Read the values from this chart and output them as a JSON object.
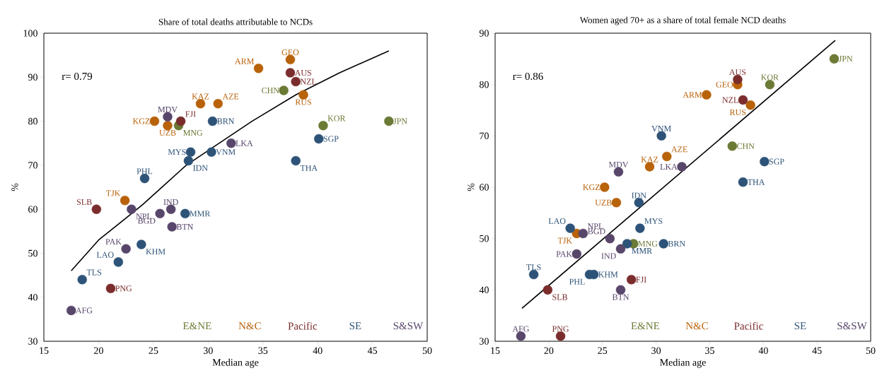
{
  "chart_data": [
    {
      "type": "scatter",
      "title": "Share of total deaths attributable to NCDs",
      "xlabel": "Median age",
      "ylabel": "%",
      "xlim": [
        15,
        50
      ],
      "xticks": [
        15,
        20,
        25,
        30,
        35,
        40,
        45,
        50
      ],
      "ylim": [
        30,
        100
      ],
      "yticks": [
        30,
        40,
        50,
        60,
        70,
        80,
        90,
        100
      ],
      "legend": "bottom right",
      "series": [
        {
          "name": "E&NE",
          "color": "#6b7a35",
          "marker": "circle",
          "x": [
            36.9,
            27.3,
            40.5,
            46.5
          ],
          "values": [
            87,
            79,
            79,
            80
          ]
        },
        {
          "name": "N&C",
          "color": "#b8620a",
          "marker": "circle",
          "x": [
            29.3,
            30.9,
            25.1,
            26.3,
            34.6,
            37.5,
            38.7,
            22.4
          ],
          "values": [
            84,
            84,
            80,
            79,
            92,
            94,
            86,
            62
          ]
        },
        {
          "name": "Pacific",
          "color": "#7b2d2d",
          "marker": "circle",
          "x": [
            27.5,
            37.5,
            38.0,
            19.8,
            21.1
          ],
          "values": [
            80,
            91,
            89,
            60,
            42
          ]
        },
        {
          "name": "SE",
          "color": "#2e5378",
          "marker": "circle",
          "x": [
            30.4,
            28.4,
            28.2,
            30.3,
            24.2,
            40.1,
            38.0,
            27.9,
            23.9,
            21.8,
            18.5
          ],
          "values": [
            80,
            73,
            71,
            73,
            67,
            76,
            71,
            59,
            52,
            48,
            44
          ]
        },
        {
          "name": "S&SW",
          "color": "#58466b",
          "marker": "circle",
          "x": [
            26.3,
            32.1,
            26.6,
            23.0,
            25.6,
            26.7,
            22.5,
            17.5
          ],
          "values": [
            81,
            75,
            60,
            60,
            59,
            56,
            51,
            37
          ]
        },
        {
          "type": "line",
          "marker": "none",
          "color": "#000000",
          "x": [
            17.5,
            20,
            22,
            24,
            26,
            28,
            31,
            34,
            38,
            42,
            46.5
          ],
          "values": [
            46,
            53,
            57,
            61,
            65.5,
            70,
            75,
            80,
            86,
            91,
            96
          ]
        }
      ],
      "annotations": [
        "r= 0.79",
        {
          "text": "CHN",
          "x": 36.9,
          "y": 87
        },
        {
          "text": "MNG",
          "x": 27.3,
          "y": 79
        },
        {
          "text": "KOR",
          "x": 40.5,
          "y": 79
        },
        {
          "text": "JPN",
          "x": 46.5,
          "y": 80
        },
        {
          "text": "KAZ",
          "x": 29.3,
          "y": 84
        },
        {
          "text": "AZE",
          "x": 30.9,
          "y": 84
        },
        {
          "text": "KGZ",
          "x": 25.1,
          "y": 80
        },
        {
          "text": "UZB",
          "x": 26.3,
          "y": 79
        },
        {
          "text": "ARM",
          "x": 34.6,
          "y": 92
        },
        {
          "text": "GEO",
          "x": 37.5,
          "y": 94
        },
        {
          "text": "RUS",
          "x": 38.7,
          "y": 86
        },
        {
          "text": "TJK",
          "x": 22.4,
          "y": 62
        },
        {
          "text": "FJI",
          "x": 27.5,
          "y": 80
        },
        {
          "text": "AUS",
          "x": 37.5,
          "y": 91
        },
        {
          "text": "NZL",
          "x": 38.0,
          "y": 89
        },
        {
          "text": "SLB",
          "x": 19.8,
          "y": 60
        },
        {
          "text": "PNG",
          "x": 21.1,
          "y": 42
        },
        {
          "text": "BRN",
          "x": 30.4,
          "y": 80
        },
        {
          "text": "MYS",
          "x": 28.4,
          "y": 73
        },
        {
          "text": "IDN",
          "x": 28.2,
          "y": 71
        },
        {
          "text": "VNM",
          "x": 30.3,
          "y": 73
        },
        {
          "text": "PHL",
          "x": 24.2,
          "y": 67
        },
        {
          "text": "SGP",
          "x": 40.1,
          "y": 76
        },
        {
          "text": "THA",
          "x": 38.0,
          "y": 71
        },
        {
          "text": "MMR",
          "x": 27.9,
          "y": 59
        },
        {
          "text": "KHM",
          "x": 23.9,
          "y": 52
        },
        {
          "text": "LAO",
          "x": 21.8,
          "y": 48
        },
        {
          "text": "TLS",
          "x": 18.5,
          "y": 44
        },
        {
          "text": "MDV",
          "x": 26.3,
          "y": 81
        },
        {
          "text": "LKA",
          "x": 32.1,
          "y": 75
        },
        {
          "text": "IND",
          "x": 26.6,
          "y": 60
        },
        {
          "text": "NPL",
          "x": 23.0,
          "y": 60
        },
        {
          "text": "BGD",
          "x": 25.6,
          "y": 59
        },
        {
          "text": "BTN",
          "x": 26.7,
          "y": 56
        },
        {
          "text": "PAK",
          "x": 22.5,
          "y": 51
        },
        {
          "text": "AFG",
          "x": 17.5,
          "y": 37
        }
      ]
    },
    {
      "type": "scatter",
      "title": "Women aged 70+ as a share of total female NCD deaths",
      "xlabel": "Median age",
      "ylabel": "%",
      "xlim": [
        15,
        50
      ],
      "xticks": [
        15,
        20,
        25,
        30,
        35,
        40,
        45,
        50
      ],
      "ylim": [
        30,
        90
      ],
      "yticks": [
        30,
        40,
        50,
        60,
        70,
        80,
        90
      ],
      "legend": "bottom right",
      "series": [
        {
          "name": "E&NE",
          "color": "#6b7a35",
          "marker": "circle",
          "x": [
            37.1,
            27.9,
            40.6,
            46.6
          ],
          "values": [
            68,
            49,
            80,
            85
          ]
        },
        {
          "name": "N&C",
          "color": "#b8620a",
          "marker": "circle",
          "x": [
            29.4,
            31.0,
            25.2,
            26.3,
            34.7,
            37.6,
            38.8,
            22.6
          ],
          "values": [
            64,
            66,
            60,
            57,
            78,
            80,
            76,
            51
          ]
        },
        {
          "name": "Pacific",
          "color": "#7b2d2d",
          "marker": "circle",
          "x": [
            27.7,
            37.6,
            38.1,
            19.9,
            21.1
          ],
          "values": [
            42,
            81,
            77,
            40,
            31
          ]
        },
        {
          "name": "SE",
          "color": "#2e5378",
          "marker": "circle",
          "x": [
            30.7,
            28.5,
            28.4,
            30.5,
            23.8,
            40.1,
            38.1,
            27.3,
            24.2,
            22.0,
            18.6
          ],
          "values": [
            49,
            52,
            57,
            70,
            43,
            65,
            61,
            49,
            43,
            52,
            43
          ]
        },
        {
          "name": "S&SW",
          "color": "#58466b",
          "marker": "circle",
          "x": [
            26.5,
            32.4,
            26.7,
            23.2,
            25.7,
            26.7,
            22.6,
            17.4
          ],
          "values": [
            63,
            64,
            48,
            51,
            50,
            40,
            47,
            31
          ]
        },
        {
          "type": "line",
          "marker": "none",
          "color": "#000000",
          "x": [
            17.5,
            46.7
          ],
          "values": [
            36.4,
            88.6
          ]
        }
      ],
      "annotations": [
        "r= 0.86",
        {
          "text": "CHN",
          "x": 37.1,
          "y": 68
        },
        {
          "text": "MNG",
          "x": 27.9,
          "y": 49
        },
        {
          "text": "KOR",
          "x": 40.6,
          "y": 80
        },
        {
          "text": "JPN",
          "x": 46.6,
          "y": 85
        },
        {
          "text": "KAZ",
          "x": 29.4,
          "y": 64
        },
        {
          "text": "AZE",
          "x": 31.0,
          "y": 66
        },
        {
          "text": "KGZ",
          "x": 25.2,
          "y": 60
        },
        {
          "text": "UZB",
          "x": 26.3,
          "y": 57
        },
        {
          "text": "ARM",
          "x": 34.7,
          "y": 78
        },
        {
          "text": "GEO",
          "x": 37.6,
          "y": 80
        },
        {
          "text": "RUS",
          "x": 38.8,
          "y": 76
        },
        {
          "text": "TJK",
          "x": 22.6,
          "y": 51
        },
        {
          "text": "FJI",
          "x": 27.7,
          "y": 42
        },
        {
          "text": "AUS",
          "x": 37.6,
          "y": 81
        },
        {
          "text": "NZL",
          "x": 38.1,
          "y": 77
        },
        {
          "text": "SLB",
          "x": 19.9,
          "y": 40
        },
        {
          "text": "PNG",
          "x": 21.1,
          "y": 31
        },
        {
          "text": "BRN",
          "x": 30.7,
          "y": 49
        },
        {
          "text": "MYS",
          "x": 28.5,
          "y": 52
        },
        {
          "text": "IDN",
          "x": 28.4,
          "y": 57
        },
        {
          "text": "VNM",
          "x": 30.5,
          "y": 70
        },
        {
          "text": "PHL",
          "x": 23.8,
          "y": 43
        },
        {
          "text": "SGP",
          "x": 40.1,
          "y": 65
        },
        {
          "text": "THA",
          "x": 38.1,
          "y": 61
        },
        {
          "text": "MMR",
          "x": 27.3,
          "y": 49
        },
        {
          "text": "KHM",
          "x": 24.2,
          "y": 43
        },
        {
          "text": "LAO",
          "x": 22.0,
          "y": 52
        },
        {
          "text": "TLS",
          "x": 18.6,
          "y": 43
        },
        {
          "text": "MDV",
          "x": 26.5,
          "y": 63
        },
        {
          "text": "LKA",
          "x": 32.4,
          "y": 64
        },
        {
          "text": "IND",
          "x": 26.7,
          "y": 48
        },
        {
          "text": "NPL",
          "x": 23.2,
          "y": 51
        },
        {
          "text": "BGD",
          "x": 25.7,
          "y": 50
        },
        {
          "text": "BTN",
          "x": 26.7,
          "y": 40
        },
        {
          "text": "PAK",
          "x": 22.6,
          "y": 47
        },
        {
          "text": "AFG",
          "x": 17.4,
          "y": 31
        }
      ]
    }
  ]
}
